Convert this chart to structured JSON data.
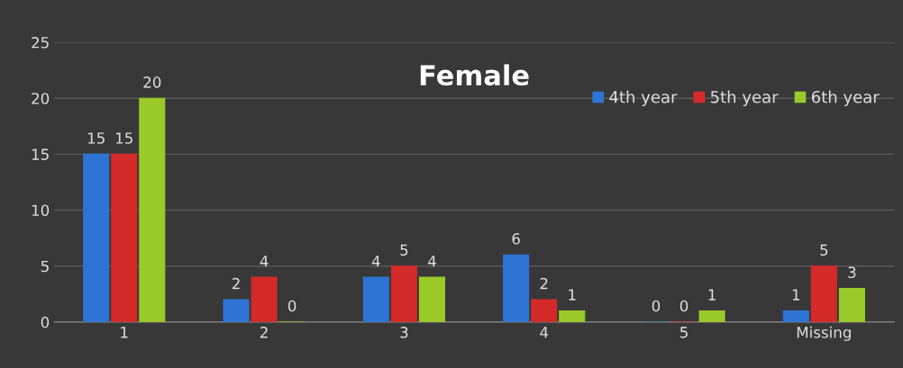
{
  "chart_data": {
    "type": "bar",
    "title": "Female",
    "categories": [
      "1",
      "2",
      "3",
      "4",
      "5",
      "Missing"
    ],
    "series": [
      {
        "name": "4th year",
        "color": "#2e74d4",
        "values": [
          15,
          2,
          4,
          6,
          0,
          1
        ]
      },
      {
        "name": "5th year",
        "color": "#d42a2a",
        "values": [
          15,
          4,
          5,
          2,
          0,
          5
        ]
      },
      {
        "name": "6th year",
        "color": "#9bcb2a",
        "values": [
          20,
          0,
          4,
          1,
          1,
          3
        ]
      }
    ],
    "ylim": [
      0,
      25
    ],
    "yticks": [
      0,
      5,
      10,
      15,
      20,
      25
    ],
    "grid": "y",
    "legend": "top right",
    "data_labels": true
  }
}
